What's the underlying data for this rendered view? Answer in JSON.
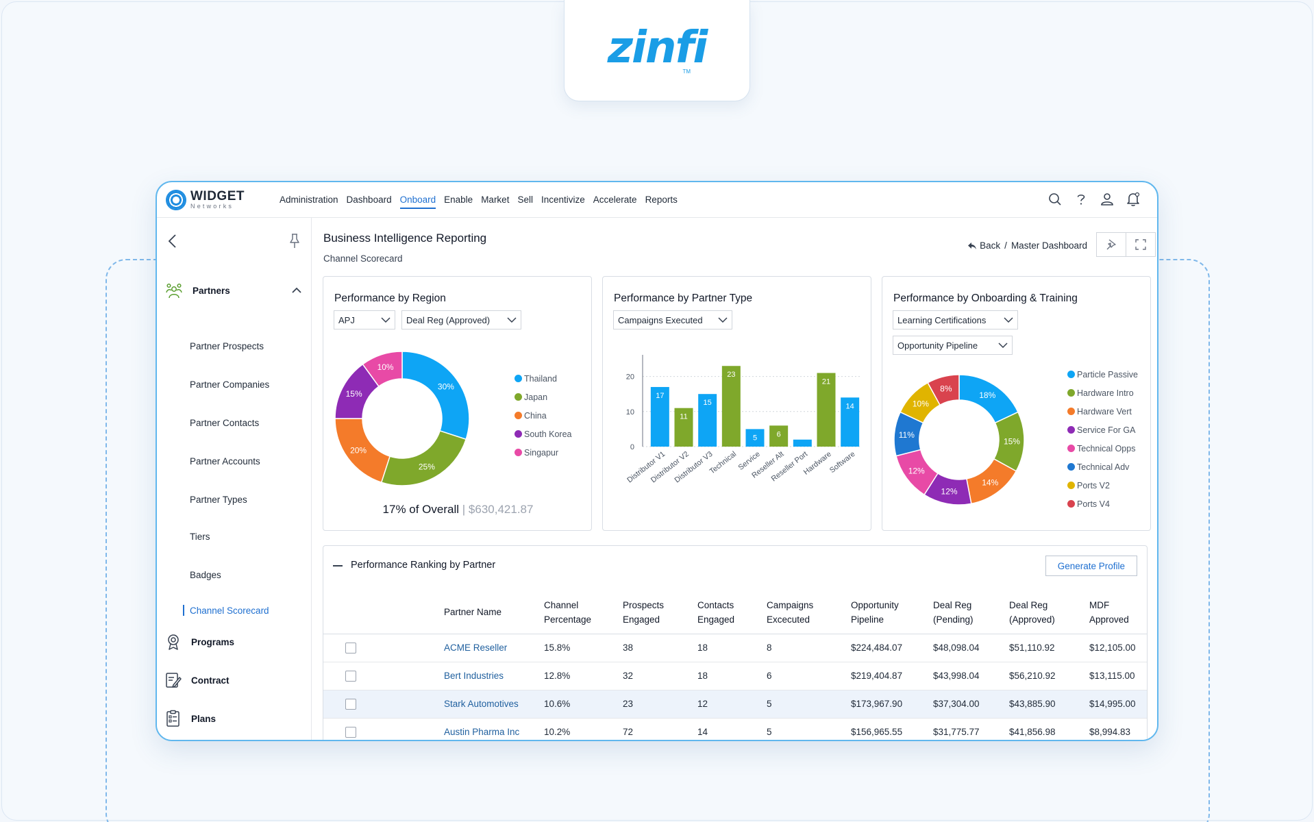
{
  "logo": {
    "text": "zinfi",
    "tm": "TM"
  },
  "brand": {
    "name": "WIDGET",
    "sub": "Networks"
  },
  "nav": [
    "Administration",
    "Dashboard",
    "Onboard",
    "Enable",
    "Market",
    "Sell",
    "Incentivize",
    "Accelerate",
    "Reports"
  ],
  "nav_active": "Onboard",
  "top_icons": [
    "search-icon",
    "help-icon",
    "user-icon",
    "bell-icon"
  ],
  "sidebar": {
    "groups": [
      {
        "label": "Partners",
        "icon": "partners-icon"
      },
      {
        "label": "Programs",
        "icon": "programs-icon"
      },
      {
        "label": "Contract",
        "icon": "contract-icon"
      },
      {
        "label": "Plans",
        "icon": "plans-icon"
      }
    ],
    "items": [
      "Partner Prospects",
      "Partner Companies",
      "Partner Contacts",
      "Partner Accounts",
      "Partner Types",
      "Tiers",
      "Badges",
      "Channel Scorecard"
    ],
    "active_item": "Channel Scorecard"
  },
  "header": {
    "title": "Business Intelligence Reporting",
    "subtitle": "Channel Scorecard",
    "back_label": "Back",
    "crumb_sep": "/",
    "crumb_current": "Master Dashboard"
  },
  "cards": {
    "region": {
      "title": "Performance by Region",
      "filter1": "APJ",
      "filter2": "Deal Reg (Approved)",
      "caption_pct": "17% of Overall",
      "caption_sep": "|",
      "caption_amt": "$630,421.87"
    },
    "partner_type": {
      "title": "Performance by Partner Type",
      "filter1": "Campaigns Executed"
    },
    "onboarding": {
      "title": "Performance by Onboarding & Training",
      "filter1": "Learning Certifications",
      "filter2": "Opportunity Pipeline"
    }
  },
  "chart_data": [
    {
      "type": "pie",
      "categories": [
        "Thailand",
        "Japan",
        "China",
        "South Korea",
        "Singapur"
      ],
      "values": [
        30,
        25,
        20,
        15,
        10
      ],
      "labels": [
        "30%",
        "25%",
        "20%",
        "15%",
        "10%"
      ],
      "colors": [
        "#0ea5f5",
        "#7fa82b",
        "#f47b2a",
        "#8e2bb5",
        "#e84aa6"
      ],
      "legend": "right"
    },
    {
      "type": "bar",
      "categories": [
        "Distributor V1",
        "Distributor V2",
        "Distributor V3",
        "Technical",
        "Service",
        "Reseller Alt",
        "Reseller Port",
        "Hardware",
        "Software"
      ],
      "values": [
        17,
        11,
        15,
        23,
        5,
        6,
        2,
        21,
        14
      ],
      "value_labels": [
        "17",
        "11",
        "15",
        "23",
        "5",
        "6",
        "",
        "21",
        "14"
      ],
      "colors": [
        "#0ea5f5",
        "#7fa82b",
        "#0ea5f5",
        "#7fa82b",
        "#0ea5f5",
        "#7fa82b",
        "#0ea5f5",
        "#7fa82b",
        "#0ea5f5"
      ],
      "yticks": [
        "0",
        "10",
        "20"
      ],
      "ylim": [
        0,
        25
      ],
      "grid": true
    },
    {
      "type": "pie",
      "categories": [
        "Particle Passive",
        "Hardware Intro",
        "Hardware Vert",
        "Service For GA",
        "Technical Opps",
        "Technical Adv",
        "Ports V2",
        "Ports V4"
      ],
      "values": [
        18,
        15,
        14,
        12,
        12,
        11,
        10,
        8
      ],
      "labels": [
        "18%",
        "15%",
        "14%",
        "12%",
        "12%",
        "11%",
        "10%",
        "8%"
      ],
      "colors": [
        "#0ea5f5",
        "#7fa82b",
        "#f47b2a",
        "#8e2bb5",
        "#e84aa6",
        "#1f78d1",
        "#e0b400",
        "#d9434e"
      ],
      "legend": "right"
    }
  ],
  "table": {
    "title": "Performance Ranking by Partner",
    "action": "Generate Profile",
    "headers": [
      [
        "Partner Name"
      ],
      [
        "Channel",
        "Percentage"
      ],
      [
        "Prospects",
        "Engaged"
      ],
      [
        "Contacts",
        "Engaged"
      ],
      [
        "Campaigns",
        "Excecuted"
      ],
      [
        "Opportunity",
        "Pipeline"
      ],
      [
        "Deal Reg",
        "(Pending)"
      ],
      [
        "Deal Reg",
        "(Approved)"
      ],
      [
        "MDF",
        "Approved"
      ]
    ],
    "rows": [
      [
        "ACME Reseller",
        "15.8%",
        "38",
        "18",
        "8",
        "$224,484.07",
        "$48,098.04",
        "$51,110.92",
        "$12,105.00"
      ],
      [
        "Bert Industries",
        "12.8%",
        "32",
        "18",
        "6",
        "$219,404.87",
        "$43,998.04",
        "$56,210.92",
        "$13,115.00"
      ],
      [
        "Stark Automotives",
        "10.6%",
        "23",
        "12",
        "5",
        "$173,967.90",
        "$37,304.00",
        "$43,885.90",
        "$14,995.00"
      ],
      [
        "Austin Pharma Inc",
        "10.2%",
        "72",
        "14",
        "5",
        "$156,965.55",
        "$31,775.77",
        "$41,856.98",
        "$8,994.83"
      ]
    ],
    "highlighted_row": 2
  }
}
